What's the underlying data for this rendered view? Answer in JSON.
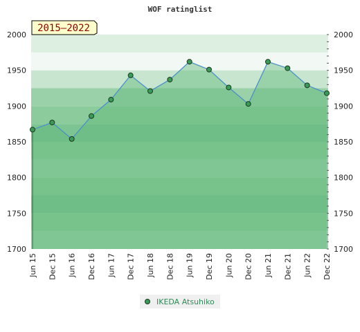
{
  "chart_data": {
    "type": "area",
    "title": "WOF ratinglist",
    "badge": "2015–2022",
    "categories": [
      "Jun 15",
      "Dec 15",
      "Jun 16",
      "Dec 16",
      "Jun 17",
      "Dec 17",
      "Jun 18",
      "Dec 18",
      "Jun 19",
      "Dec 19",
      "Jun 20",
      "Dec 20",
      "Jun 21",
      "Dec 21",
      "Jun 22",
      "Dec 22"
    ],
    "series": [
      {
        "name": "IKEDA Atsuhiko",
        "values": [
          1867,
          1877,
          1854,
          1886,
          1909,
          1943,
          1921,
          1937,
          1962,
          1951,
          1926,
          1903,
          1962,
          1953,
          1929,
          1918
        ]
      }
    ],
    "ylim": [
      1700,
      2000
    ],
    "yticks": [
      1700,
      1750,
      1800,
      1850,
      1900,
      1950,
      2000
    ],
    "xlabel": "",
    "ylabel": "",
    "legend_position": "bottom-center",
    "grid": false,
    "colors": {
      "line": "#4a90c8",
      "area": "#5fb87a",
      "marker": "#3a9a5a",
      "badge_bg": "#ffffcc",
      "legend_text": "#2e8b57"
    }
  }
}
